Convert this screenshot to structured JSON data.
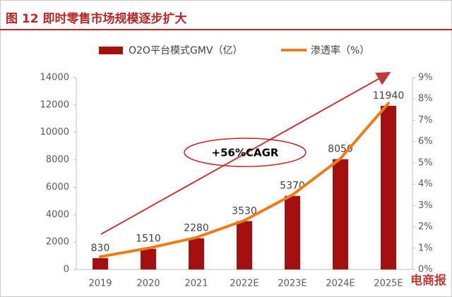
{
  "chart_data": {
    "type": "bar-line",
    "title": "图 12 即时零售市场规模逐步扩大",
    "categories": [
      "2019",
      "2020",
      "2021",
      "2022E",
      "2023E",
      "2024E",
      "2025E"
    ],
    "series": [
      {
        "name": "O2O平台模式GMV（亿）",
        "color": "#a3100f",
        "type": "bar",
        "values": [
          830,
          1510,
          2280,
          3530,
          5370,
          8050,
          11940
        ]
      },
      {
        "name": "渗透率（%）",
        "color": "#ea7d1c",
        "type": "line",
        "axis": "y2",
        "values": [
          0.6,
          1.0,
          1.5,
          2.3,
          3.5,
          5.2,
          7.8
        ]
      }
    ],
    "ylim": [
      0,
      14000
    ],
    "yticks": [
      0,
      2000,
      4000,
      6000,
      8000,
      10000,
      12000,
      14000
    ],
    "y2lim": [
      0,
      9
    ],
    "y2ticks": [
      {
        "value": 0,
        "label": "0%"
      },
      {
        "value": 1,
        "label": "1%"
      },
      {
        "value": 2,
        "label": "2%"
      },
      {
        "value": 3,
        "label": "3%"
      },
      {
        "value": 4,
        "label": "4%"
      },
      {
        "value": 5,
        "label": "5%"
      },
      {
        "value": 6,
        "label": "6%"
      },
      {
        "value": 7,
        "label": "7%"
      },
      {
        "value": 8,
        "label": "8%"
      },
      {
        "value": 9,
        "label": "9%"
      }
    ],
    "annotation": "+56%CAGR",
    "watermark": "电商报"
  }
}
